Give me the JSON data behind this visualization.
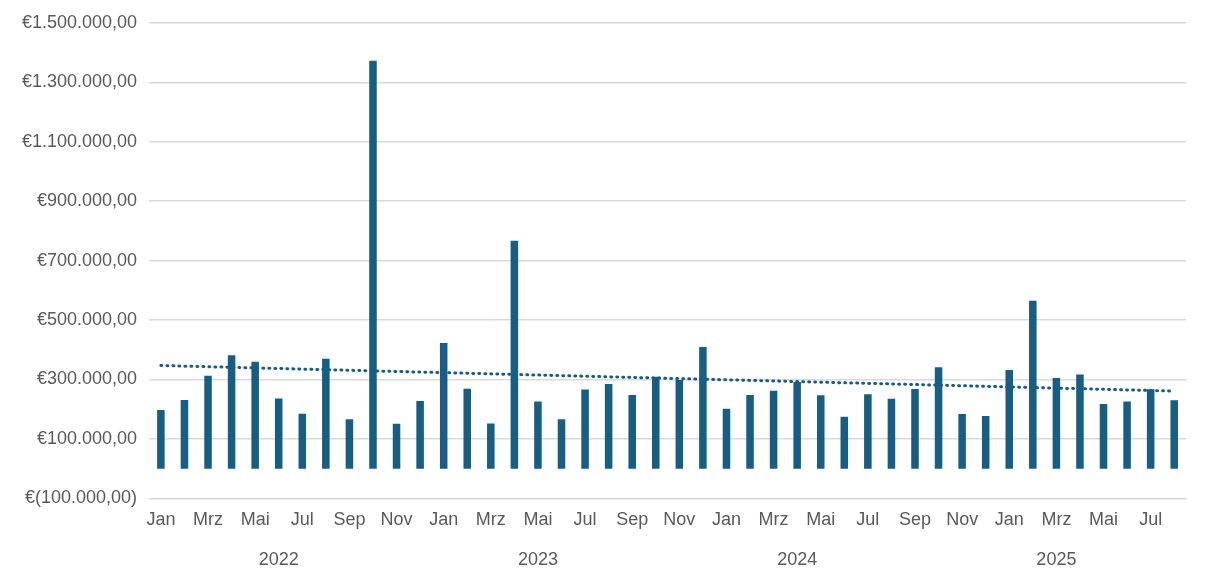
{
  "chart_data": {
    "type": "bar",
    "categories": [
      "Jan",
      null,
      "Mrz",
      null,
      "Mai",
      null,
      "Jul",
      null,
      "Sep",
      null,
      "Nov",
      null,
      "Jan",
      null,
      "Mrz",
      null,
      "Mai",
      null,
      "Jul",
      null,
      "Sep",
      null,
      "Nov",
      null,
      "Jan",
      null,
      "Mrz",
      null,
      "Mai",
      null,
      "Jul",
      null,
      "Sep",
      null,
      "Nov",
      null,
      "Jan",
      null,
      "Mrz",
      null,
      "Mai",
      null,
      "Jul",
      null
    ],
    "series": [
      {
        "color": "#175e82",
        "values": [
          197000,
          231000,
          313000,
          382000,
          360000,
          236000,
          185000,
          370000,
          166000,
          1372000,
          151000,
          228000,
          423000,
          269000,
          152000,
          767000,
          226000,
          166000,
          266000,
          285000,
          248000,
          309000,
          298000,
          409000,
          202000,
          248000,
          262000,
          292000,
          247000,
          175000,
          250000,
          235000,
          268000,
          341000,
          184000,
          177000,
          332000,
          565000,
          305000,
          317000,
          218000,
          226000,
          267000,
          230000
        ]
      },
      {
        "type": "line",
        "color": "#175e82",
        "line_style": "dotted",
        "marker": "none",
        "values": [
          347000,
          null,
          null,
          null,
          null,
          null,
          null,
          null,
          null,
          null,
          null,
          null,
          null,
          null,
          null,
          null,
          null,
          null,
          null,
          null,
          null,
          null,
          null,
          null,
          null,
          null,
          null,
          null,
          null,
          null,
          null,
          null,
          null,
          null,
          null,
          null,
          null,
          null,
          null,
          null,
          null,
          null,
          null,
          261000
        ]
      }
    ],
    "ylim": [
      -100000,
      1500000
    ],
    "yticks": [
      {
        "value": -100000,
        "label": "€(100.000,00)"
      },
      {
        "value": 100000,
        "label": "€100.000,00"
      },
      {
        "value": 300000,
        "label": "€300.000,00"
      },
      {
        "value": 500000,
        "label": "€500.000,00"
      },
      {
        "value": 700000,
        "label": "€700.000,00"
      },
      {
        "value": 900000,
        "label": "€900.000,00"
      },
      {
        "value": 1100000,
        "label": "€1.100.000,00"
      },
      {
        "value": 1300000,
        "label": "€1.300.000,00"
      },
      {
        "value": 1500000,
        "label": "€1.500.000,00"
      }
    ],
    "grid": "y",
    "legend": false,
    "annotations": [
      "2022",
      "2023",
      "2024",
      "2025"
    ]
  }
}
